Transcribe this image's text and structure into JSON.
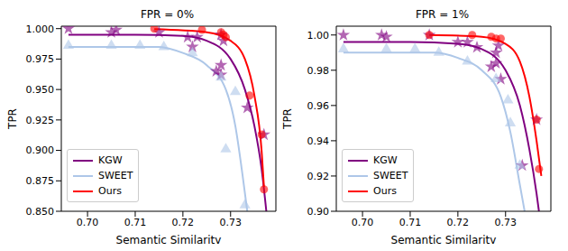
{
  "chart_data": [
    {
      "type": "line",
      "title": "FPR = 0%",
      "x_label": "Semantic Similarity",
      "y_label": "TPR",
      "xlim": [
        0.6945,
        0.7395
      ],
      "ylim": [
        0.85,
        1.002
      ],
      "xticks": [
        {
          "value": 0.7,
          "label": "0.70"
        },
        0.71,
        0.72,
        0.73
      ],
      "yticks": [
        {
          "value": 0.85,
          "label": "0.850"
        },
        0.875,
        {
          "value": 0.9,
          "label": "0.900"
        },
        0.925,
        {
          "value": 0.95,
          "label": "0.950"
        },
        0.975,
        {
          "value": 1.0,
          "label": "1.000"
        }
      ],
      "grid": false,
      "legend": "lower left",
      "series": [
        {
          "name": "KGW",
          "color": "#800080",
          "marker": "star",
          "x": [
            0.696,
            0.71,
            0.72,
            0.725,
            0.73,
            0.733,
            0.735,
            0.7365,
            0.7375
          ],
          "values": [
            0.995,
            0.995,
            0.994,
            0.99,
            0.975,
            0.95,
            0.92,
            0.885,
            0.85
          ],
          "points_x": [
            0.696,
            0.705,
            0.706,
            0.715,
            0.721,
            0.723,
            0.722,
            0.727,
            0.728,
            0.728,
            0.728,
            0.7285,
            0.7335,
            0.737
          ],
          "points_y": [
            1.0,
            0.997,
            0.999,
            0.997,
            0.993,
            0.993,
            0.985,
            0.965,
            0.962,
            0.97,
            0.995,
            0.99,
            0.935,
            0.913
          ]
        },
        {
          "name": "SWEET",
          "color": "#aec7e8",
          "marker": "triangle",
          "x": [
            0.696,
            0.715,
            0.72,
            0.725,
            0.729,
            0.731,
            0.7325,
            0.7335
          ],
          "values": [
            0.985,
            0.985,
            0.98,
            0.97,
            0.95,
            0.92,
            0.88,
            0.85
          ],
          "points_x": [
            0.696,
            0.705,
            0.711,
            0.716,
            0.722,
            0.728,
            0.729,
            0.731,
            0.733
          ],
          "points_y": [
            0.986,
            0.986,
            0.986,
            0.985,
            0.98,
            0.96,
            0.901,
            0.948,
            0.855
          ]
        },
        {
          "name": "Ours",
          "color": "#ff0000",
          "marker": "circle",
          "x": [
            0.714,
            0.725,
            0.73,
            0.733,
            0.735,
            0.7365,
            0.737
          ],
          "values": [
            0.9995,
            0.997,
            0.99,
            0.975,
            0.945,
            0.9,
            0.87
          ],
          "points_x": [
            0.714,
            0.724,
            0.728,
            0.7285,
            0.729,
            0.734,
            0.7365,
            0.737
          ],
          "points_y": [
            1.0,
            0.999,
            0.997,
            0.995,
            0.993,
            0.945,
            0.913,
            0.868
          ]
        }
      ]
    },
    {
      "type": "line",
      "title": "FPR = 1%",
      "x_label": "Semantic Similarity",
      "y_label": "TPR",
      "xlim": [
        0.6945,
        0.7395
      ],
      "ylim": [
        0.9,
        1.005
      ],
      "xticks": [
        {
          "value": 0.7,
          "label": "0.70"
        },
        0.71,
        0.72,
        0.73
      ],
      "yticks": [
        {
          "value": 0.9,
          "label": "0.90"
        },
        0.92,
        0.94,
        0.96,
        0.98,
        {
          "value": 1.0,
          "label": "1.00"
        }
      ],
      "grid": false,
      "legend": "lower left",
      "series": [
        {
          "name": "KGW",
          "color": "#800080",
          "marker": "star",
          "x": [
            0.696,
            0.71,
            0.72,
            0.725,
            0.73,
            0.733,
            0.735,
            0.7365,
            0.737
          ],
          "values": [
            0.996,
            0.996,
            0.995,
            0.992,
            0.98,
            0.96,
            0.935,
            0.91,
            0.9
          ],
          "points_x": [
            0.696,
            0.704,
            0.705,
            0.714,
            0.72,
            0.722,
            0.724,
            0.727,
            0.728,
            0.728,
            0.7285,
            0.729,
            0.7335,
            0.7365
          ],
          "points_y": [
            1.0,
            1.0,
            0.999,
            1.0,
            0.996,
            0.996,
            0.993,
            0.982,
            0.984,
            0.99,
            0.994,
            0.975,
            0.926,
            0.952
          ]
        },
        {
          "name": "SWEET",
          "color": "#aec7e8",
          "marker": "triangle",
          "x": [
            0.696,
            0.715,
            0.72,
            0.725,
            0.729,
            0.731,
            0.733,
            0.734
          ],
          "values": [
            0.99,
            0.99,
            0.987,
            0.98,
            0.965,
            0.945,
            0.915,
            0.9
          ],
          "points_x": [
            0.696,
            0.705,
            0.711,
            0.716,
            0.722,
            0.728,
            0.7305,
            0.731,
            0.733
          ],
          "points_y": [
            0.992,
            0.992,
            0.992,
            0.99,
            0.985,
            0.975,
            0.963,
            0.95,
            0.926
          ]
        },
        {
          "name": "Ours",
          "color": "#ff0000",
          "marker": "circle",
          "x": [
            0.714,
            0.725,
            0.73,
            0.733,
            0.735,
            0.7365,
            0.7375
          ],
          "values": [
            1.0,
            0.999,
            0.995,
            0.985,
            0.965,
            0.94,
            0.92
          ],
          "points_x": [
            0.714,
            0.723,
            0.727,
            0.728,
            0.729,
            0.7365,
            0.737
          ],
          "points_y": [
            1.0,
            1.0,
            0.999,
            0.998,
            0.998,
            0.952,
            0.924
          ]
        }
      ]
    }
  ]
}
